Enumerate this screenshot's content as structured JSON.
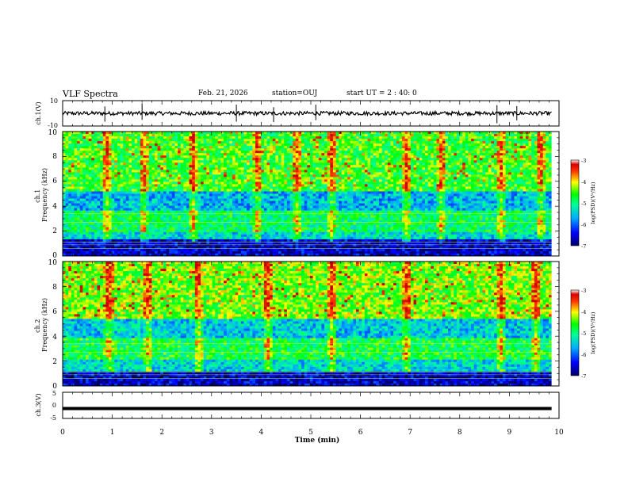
{
  "header": {
    "title": "VLF Spectra",
    "date": "Feb. 21, 2026",
    "station": "station=OUJ",
    "start": "start  UT =  2 : 40: 0"
  },
  "chart_data": [
    {
      "type": "line",
      "panel": "ch1-waveform",
      "ylabel": "ch.1(V)",
      "ylim": [
        -10,
        10
      ],
      "yticks": [
        "10",
        "-10"
      ],
      "xlim": [
        0,
        10
      ],
      "series": [
        {
          "baseline": 0,
          "noise_amplitude": 1.5,
          "spikes_at_min": [
            0.85,
            1.6,
            3.5,
            4.25,
            5.1,
            8.75,
            9.15
          ]
        }
      ]
    },
    {
      "type": "heatmap",
      "panel": "ch1-spectrogram",
      "ylabel": "ch.1\nFrequency (kHz)",
      "ylim": [
        0,
        10
      ],
      "yticks": [
        "0",
        "2",
        "4",
        "6",
        "8",
        "10"
      ],
      "xlim": [
        0,
        9.85
      ],
      "colorbar": {
        "label": "log(PSD)(V²/Hz)",
        "range": [
          -7,
          -3
        ],
        "ticks": [
          "-3",
          "-4",
          "-5",
          "-6",
          "-7"
        ]
      },
      "bands_khz": [
        {
          "from": 0,
          "to": 1.3,
          "level": -6.6
        },
        {
          "from": 1.3,
          "to": 2.0,
          "level": -5.4
        },
        {
          "from": 2.0,
          "to": 3.7,
          "level": -4.9
        },
        {
          "from": 3.7,
          "to": 5.2,
          "level": -5.6
        },
        {
          "from": 5.2,
          "to": 10,
          "level": -4.6
        }
      ],
      "vertical_streaks_min": [
        0.85,
        1.6,
        2.6,
        3.9,
        4.7,
        5.4,
        6.9,
        7.6,
        8.8,
        9.6
      ]
    },
    {
      "type": "heatmap",
      "panel": "ch2-spectrogram",
      "ylabel": "ch.2\nFrequency (kHz)",
      "ylim": [
        0,
        10
      ],
      "yticks": [
        "0",
        "2",
        "4",
        "6",
        "8",
        "10"
      ],
      "xlim": [
        0,
        9.85
      ],
      "colorbar": {
        "label": "log(PSD)(V²/Hz)",
        "range": [
          -7,
          -3
        ],
        "ticks": [
          "-3",
          "-4",
          "-5",
          "-6",
          "-7"
        ]
      },
      "bands_khz": [
        {
          "from": 0,
          "to": 1.2,
          "level": -6.6
        },
        {
          "from": 1.2,
          "to": 2.2,
          "level": -5.4
        },
        {
          "from": 2.2,
          "to": 3.8,
          "level": -4.8
        },
        {
          "from": 3.8,
          "to": 5.4,
          "level": -5.5
        },
        {
          "from": 5.4,
          "to": 10,
          "level": -4.4
        }
      ],
      "vertical_streaks_min": [
        0.9,
        1.7,
        2.7,
        4.1,
        5.4,
        6.9,
        8.8,
        9.5
      ]
    },
    {
      "type": "line",
      "panel": "ch3-waveform",
      "ylabel": "ch.3(V)",
      "ylim": [
        -5,
        5
      ],
      "yticks": [
        "5",
        "0",
        "-5"
      ],
      "xlim": [
        0,
        10
      ],
      "series": [
        {
          "constant": -1.2
        }
      ]
    }
  ],
  "xaxis": {
    "label": "Time (min)",
    "ticks": [
      "0",
      "1",
      "2",
      "3",
      "4",
      "5",
      "6",
      "7",
      "8",
      "9",
      "10"
    ]
  },
  "colors": {
    "axis": "#000000",
    "background": "#ffffff"
  }
}
